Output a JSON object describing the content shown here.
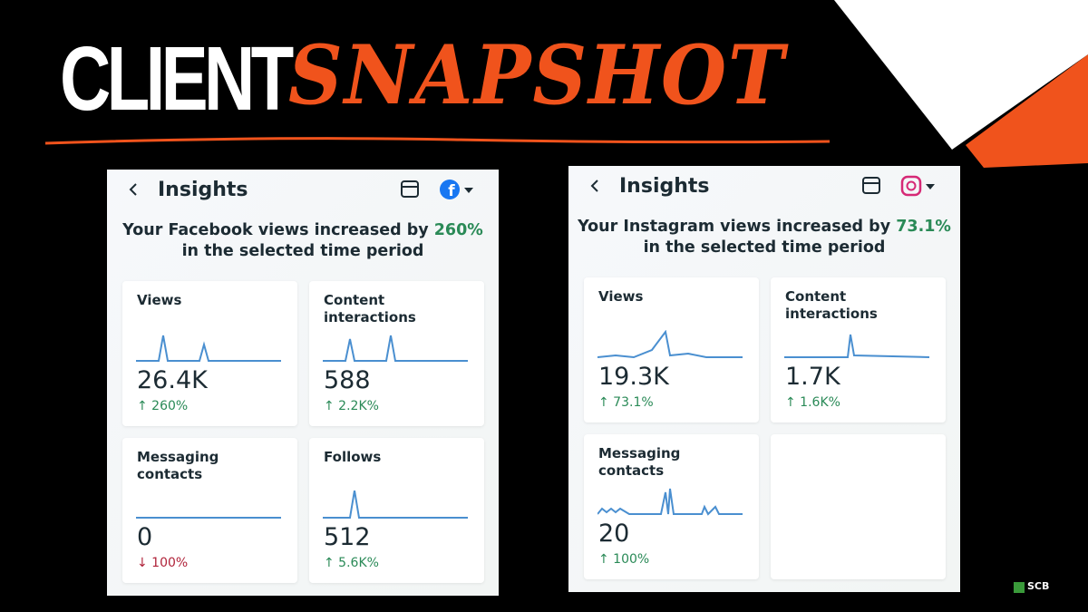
{
  "header": {
    "title_word_1": "CLIENT",
    "title_word_2": "SNAPSHOT"
  },
  "panels": [
    {
      "title": "Insights",
      "headline": {
        "before": "Your Facebook views increased by",
        "highlight": "260%",
        "after": "in the selected time period"
      },
      "cards": [
        {
          "label": "Views",
          "value": "26.4K",
          "change": "↑ 260%"
        },
        {
          "label": "Content interactions",
          "value": "588",
          "change": "↑ 2.2K%"
        },
        {
          "label": "Messaging contacts",
          "value": "0",
          "change": "↓ 100%"
        },
        {
          "label": "Follows",
          "value": "512",
          "change": "↑ 5.6K%"
        }
      ]
    },
    {
      "title": "Insights",
      "headline": {
        "before": "Your Instagram views increased by",
        "highlight": "73.1%",
        "after": "in the selected time period"
      },
      "cards": [
        {
          "label": "Views",
          "value": "19.3K",
          "change": "↑ 73.1%"
        },
        {
          "label": "Content interactions",
          "value": "1.7K",
          "change": "↑ 1.6K%"
        },
        {
          "label": "Messaging contacts",
          "value": "20",
          "change": "↑ 100%"
        }
      ]
    }
  ],
  "footer": {
    "logo": "SCB"
  }
}
